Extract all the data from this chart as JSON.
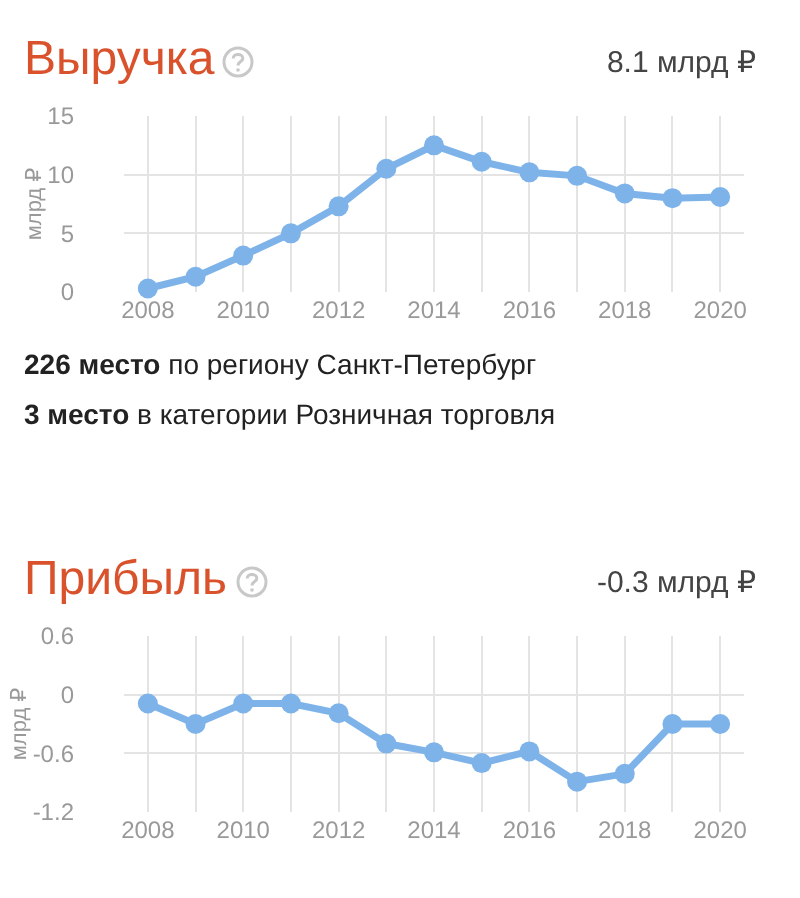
{
  "chart_data": [
    {
      "type": "line",
      "title": "Выручка",
      "ylabel": "млрд ₽",
      "annotations": [
        "8.1 млрд ₽",
        "226 место по региону Санкт-Петербург",
        "3 место в категории Розничная торговля"
      ],
      "x": [
        2008,
        2009,
        2010,
        2011,
        2012,
        2013,
        2014,
        2015,
        2016,
        2017,
        2018,
        2019,
        2020
      ],
      "series": [
        {
          "color": "#7eb3ea",
          "values": [
            0.3,
            1.3,
            3.1,
            5,
            7.3,
            10.5,
            12.5,
            11.1,
            10.2,
            9.9,
            8.4,
            8,
            8.1
          ]
        }
      ],
      "xlim": [
        2007.5,
        2020.5
      ],
      "xticks": [
        2008,
        {
          "value": 2009,
          "label": null
        },
        2010,
        {
          "value": 2011,
          "label": null
        },
        2012,
        {
          "value": 2013,
          "label": null
        },
        2014,
        {
          "value": 2015,
          "label": null
        },
        2016,
        {
          "value": 2017,
          "label": null
        },
        2018,
        {
          "value": 2019,
          "label": null
        },
        2020
      ],
      "ylim": [
        0,
        15
      ],
      "yticks": [
        0,
        5,
        10,
        15
      ],
      "grid": true,
      "marker": "circle",
      "line_style": "solid"
    },
    {
      "type": "line",
      "title": "Прибыль",
      "ylabel": "млрд ₽",
      "annotations": [
        "-0.3 млрд ₽"
      ],
      "x": [
        2008,
        2009,
        2010,
        2011,
        2012,
        2013,
        2014,
        2015,
        2016,
        2017,
        2018,
        2019,
        2020
      ],
      "series": [
        {
          "color": "#7eb3ea",
          "values": [
            -0.09,
            -0.3,
            -0.09,
            -0.09,
            -0.19,
            -0.5,
            -0.59,
            -0.7,
            -0.58,
            -0.89,
            -0.81,
            -0.3,
            -0.3
          ]
        }
      ],
      "xlim": [
        2007.5,
        2020.5
      ],
      "xticks": [
        2008,
        {
          "value": 2009,
          "label": null
        },
        2010,
        {
          "value": 2011,
          "label": null
        },
        2012,
        {
          "value": 2013,
          "label": null
        },
        2014,
        {
          "value": 2015,
          "label": null
        },
        2016,
        {
          "value": 2017,
          "label": null
        },
        2018,
        {
          "value": 2019,
          "label": null
        },
        2020
      ],
      "ylim": [
        -1.2,
        0.6
      ],
      "yticks": [
        -1.2,
        -0.6,
        0,
        0.6
      ],
      "grid": true,
      "marker": "circle",
      "line_style": "solid"
    }
  ]
}
